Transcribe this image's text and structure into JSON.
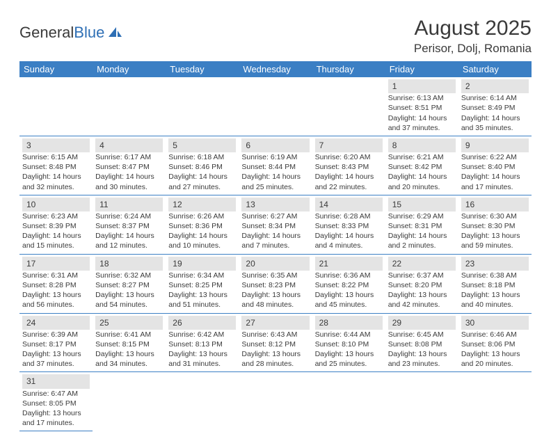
{
  "logo": {
    "text1": "General",
    "text2": "Blue"
  },
  "title": "August 2025",
  "location": "Perisor, Dolj, Romania",
  "colors": {
    "header_bg": "#3b7fc4",
    "header_fg": "#ffffff",
    "daynum_bg": "#e4e4e4",
    "text": "#3a3a3a",
    "rule": "#3b7fc4",
    "logo_blue": "#2e6fb5"
  },
  "weekdays": [
    "Sunday",
    "Monday",
    "Tuesday",
    "Wednesday",
    "Thursday",
    "Friday",
    "Saturday"
  ],
  "days": [
    {
      "n": 1,
      "sr": "6:13 AM",
      "ss": "8:51 PM",
      "dlh": 14,
      "dlm": 37
    },
    {
      "n": 2,
      "sr": "6:14 AM",
      "ss": "8:49 PM",
      "dlh": 14,
      "dlm": 35
    },
    {
      "n": 3,
      "sr": "6:15 AM",
      "ss": "8:48 PM",
      "dlh": 14,
      "dlm": 32
    },
    {
      "n": 4,
      "sr": "6:17 AM",
      "ss": "8:47 PM",
      "dlh": 14,
      "dlm": 30
    },
    {
      "n": 5,
      "sr": "6:18 AM",
      "ss": "8:46 PM",
      "dlh": 14,
      "dlm": 27
    },
    {
      "n": 6,
      "sr": "6:19 AM",
      "ss": "8:44 PM",
      "dlh": 14,
      "dlm": 25
    },
    {
      "n": 7,
      "sr": "6:20 AM",
      "ss": "8:43 PM",
      "dlh": 14,
      "dlm": 22
    },
    {
      "n": 8,
      "sr": "6:21 AM",
      "ss": "8:42 PM",
      "dlh": 14,
      "dlm": 20
    },
    {
      "n": 9,
      "sr": "6:22 AM",
      "ss": "8:40 PM",
      "dlh": 14,
      "dlm": 17
    },
    {
      "n": 10,
      "sr": "6:23 AM",
      "ss": "8:39 PM",
      "dlh": 14,
      "dlm": 15
    },
    {
      "n": 11,
      "sr": "6:24 AM",
      "ss": "8:37 PM",
      "dlh": 14,
      "dlm": 12
    },
    {
      "n": 12,
      "sr": "6:26 AM",
      "ss": "8:36 PM",
      "dlh": 14,
      "dlm": 10
    },
    {
      "n": 13,
      "sr": "6:27 AM",
      "ss": "8:34 PM",
      "dlh": 14,
      "dlm": 7
    },
    {
      "n": 14,
      "sr": "6:28 AM",
      "ss": "8:33 PM",
      "dlh": 14,
      "dlm": 4
    },
    {
      "n": 15,
      "sr": "6:29 AM",
      "ss": "8:31 PM",
      "dlh": 14,
      "dlm": 2
    },
    {
      "n": 16,
      "sr": "6:30 AM",
      "ss": "8:30 PM",
      "dlh": 13,
      "dlm": 59
    },
    {
      "n": 17,
      "sr": "6:31 AM",
      "ss": "8:28 PM",
      "dlh": 13,
      "dlm": 56
    },
    {
      "n": 18,
      "sr": "6:32 AM",
      "ss": "8:27 PM",
      "dlh": 13,
      "dlm": 54
    },
    {
      "n": 19,
      "sr": "6:34 AM",
      "ss": "8:25 PM",
      "dlh": 13,
      "dlm": 51
    },
    {
      "n": 20,
      "sr": "6:35 AM",
      "ss": "8:23 PM",
      "dlh": 13,
      "dlm": 48
    },
    {
      "n": 21,
      "sr": "6:36 AM",
      "ss": "8:22 PM",
      "dlh": 13,
      "dlm": 45
    },
    {
      "n": 22,
      "sr": "6:37 AM",
      "ss": "8:20 PM",
      "dlh": 13,
      "dlm": 42
    },
    {
      "n": 23,
      "sr": "6:38 AM",
      "ss": "8:18 PM",
      "dlh": 13,
      "dlm": 40
    },
    {
      "n": 24,
      "sr": "6:39 AM",
      "ss": "8:17 PM",
      "dlh": 13,
      "dlm": 37
    },
    {
      "n": 25,
      "sr": "6:41 AM",
      "ss": "8:15 PM",
      "dlh": 13,
      "dlm": 34
    },
    {
      "n": 26,
      "sr": "6:42 AM",
      "ss": "8:13 PM",
      "dlh": 13,
      "dlm": 31
    },
    {
      "n": 27,
      "sr": "6:43 AM",
      "ss": "8:12 PM",
      "dlh": 13,
      "dlm": 28
    },
    {
      "n": 28,
      "sr": "6:44 AM",
      "ss": "8:10 PM",
      "dlh": 13,
      "dlm": 25
    },
    {
      "n": 29,
      "sr": "6:45 AM",
      "ss": "8:08 PM",
      "dlh": 13,
      "dlm": 23
    },
    {
      "n": 30,
      "sr": "6:46 AM",
      "ss": "8:06 PM",
      "dlh": 13,
      "dlm": 20
    },
    {
      "n": 31,
      "sr": "6:47 AM",
      "ss": "8:05 PM",
      "dlh": 13,
      "dlm": 17
    }
  ],
  "first_weekday_index": 5,
  "labels": {
    "sunrise": "Sunrise:",
    "sunset": "Sunset:",
    "daylight": "Daylight:",
    "hours": "hours",
    "and": "and",
    "minutes": "minutes."
  }
}
